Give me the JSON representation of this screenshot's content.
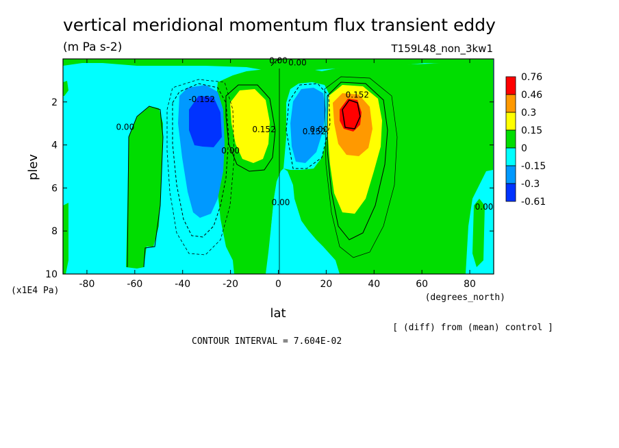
{
  "chart_data": {
    "type": "contour",
    "title": "vertical meridional momentum flux transient eddy",
    "units": "(m Pa s-2)",
    "run_label": "T159L48_non_3kw1",
    "xlabel": "lat",
    "xlabel_units": "(degrees_north)",
    "ylabel": "plev",
    "ylabel_units": "(x1E4 Pa)",
    "xlim": [
      -90,
      90
    ],
    "ylim": [
      10,
      0
    ],
    "x_ticks": [
      -80,
      -60,
      -40,
      -20,
      0,
      20,
      40,
      60,
      80
    ],
    "y_ticks": [
      2,
      4,
      6,
      8,
      10
    ],
    "colorbar": {
      "labels": [
        "0.76",
        "0.46",
        "0.3",
        "0.15",
        "0",
        "-0.15",
        "-0.3",
        "-0.61"
      ],
      "colors": [
        "#ff0000",
        "#ff9900",
        "#ffff00",
        "#00dd00",
        "#00ffff",
        "#0099ff",
        "#0033ff"
      ]
    },
    "contour_labels": [
      {
        "text": "-0.152",
        "lat": -32,
        "plev": 2.0
      },
      {
        "text": "0.152",
        "lat": 33,
        "plev": 1.8
      },
      {
        "text": "0.152",
        "lat": -6,
        "plev": 3.4
      },
      {
        "text": "0.152",
        "lat": 15,
        "plev": 3.5
      },
      {
        "text": "0.00",
        "lat": -64,
        "plev": 3.3
      },
      {
        "text": "0.00",
        "lat": -20,
        "plev": 4.4
      },
      {
        "text": "0.00",
        "lat": 0,
        "plev": 0.2
      },
      {
        "text": "0.00",
        "lat": 8,
        "plev": 0.3
      },
      {
        "text": "0.00",
        "lat": 17,
        "plev": 3.4
      },
      {
        "text": "0.00",
        "lat": 1,
        "plev": 6.8
      },
      {
        "text": "0.00",
        "lat": 86,
        "plev": 7.0
      }
    ],
    "footer_note": "[ (diff) from (mean) control ]",
    "contour_interval": "CONTOUR INTERVAL = 7.604E-02"
  }
}
